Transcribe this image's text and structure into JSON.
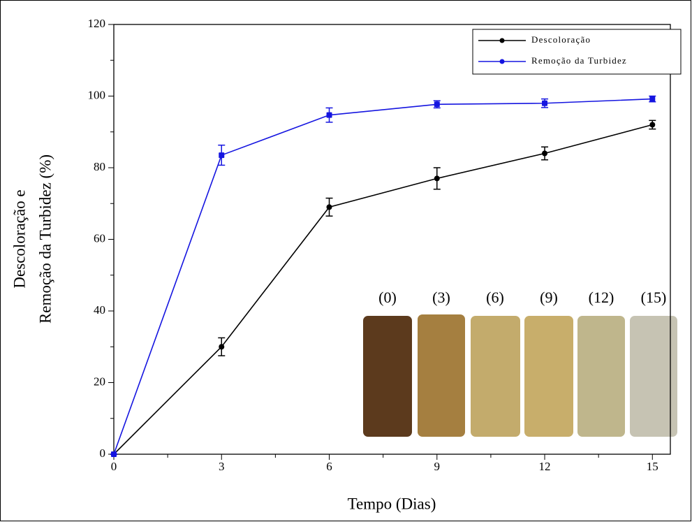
{
  "chart_data": {
    "type": "line",
    "xlabel": "Tempo (Dias)",
    "ylabel": [
      "Descoloração e",
      "Remoção da Turbidez (%)"
    ],
    "x": [
      0,
      3,
      6,
      9,
      12,
      15
    ],
    "series": [
      {
        "name": "Descoloração",
        "color": "#000000",
        "values": [
          0,
          30,
          69,
          77,
          84,
          92
        ],
        "errors": [
          0,
          2.5,
          2.5,
          3,
          1.8,
          1.2
        ]
      },
      {
        "name": "Remoção da Turbidez",
        "color": "#1515e0",
        "values": [
          0,
          83.5,
          94.7,
          97.7,
          98,
          99.2
        ],
        "errors": [
          0,
          2.8,
          2,
          1,
          1.2,
          0.8
        ]
      }
    ],
    "xlim": [
      0,
      15.5
    ],
    "xticks": [
      0,
      3,
      6,
      9,
      12,
      15
    ],
    "ylim": [
      0,
      120
    ],
    "yticks": [
      0,
      20,
      40,
      60,
      80,
      100,
      120
    ],
    "legend": "upper right",
    "inset_labels": [
      "(0)",
      "(3)",
      "(6)",
      "(9)",
      "(12)",
      "(15)"
    ]
  }
}
